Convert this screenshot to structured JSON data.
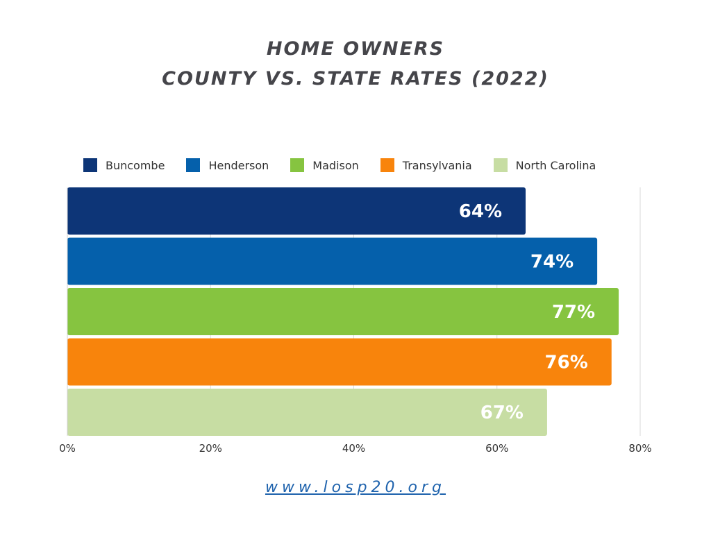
{
  "title_line1": "HOME OWNERS",
  "title_line2": "COUNTY VS. STATE RATES (2022)",
  "footer_url": "www.losp20.org",
  "chart_data": {
    "type": "bar",
    "orientation": "horizontal",
    "categories": [
      "Buncombe",
      "Henderson",
      "Madison",
      "Transylvania",
      "North Carolina"
    ],
    "values": [
      64,
      74,
      77,
      76,
      67
    ],
    "value_labels": [
      "64%",
      "74%",
      "77%",
      "76%",
      "67%"
    ],
    "colors": [
      "#0d3577",
      "#0560ab",
      "#86c440",
      "#f8840c",
      "#c7dda3"
    ],
    "xlim": [
      0,
      80
    ],
    "x_ticks": [
      0,
      20,
      40,
      60,
      80
    ],
    "x_tick_labels": [
      "0%",
      "20%",
      "40%",
      "60%",
      "80%"
    ],
    "grid": true,
    "legend_position": "top"
  }
}
